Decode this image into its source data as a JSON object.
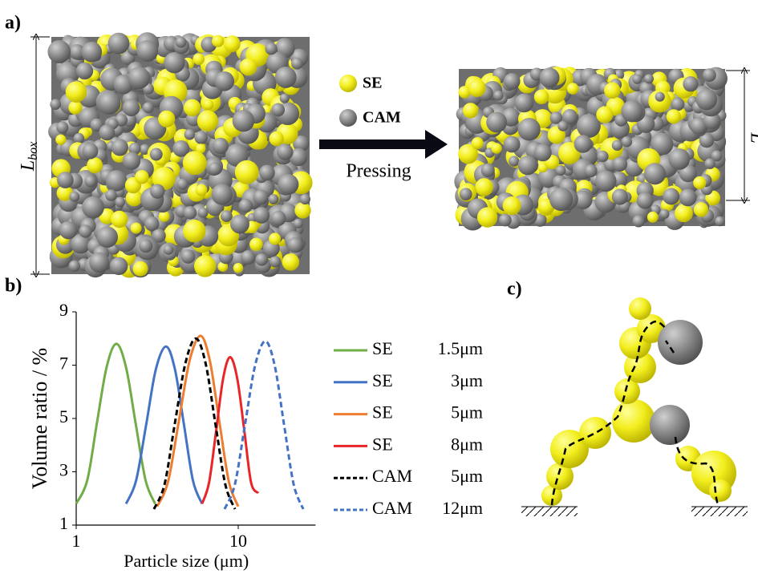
{
  "panels": {
    "a": {
      "label": "a)",
      "legend": [
        {
          "name": "SE",
          "color": "#f2ee1d"
        },
        {
          "name": "CAM",
          "color": "#8e8e8e"
        }
      ],
      "arrow_label": "Pressing",
      "height_label": {
        "text": "L",
        "subscript": "box"
      },
      "pressed_height_label": "L"
    },
    "b": {
      "label": "b)"
    },
    "c": {
      "label": "c)"
    }
  },
  "chart_data": {
    "type": "line",
    "x_label": "Particle size (μm)",
    "y_label": "Volume ratio / %",
    "xscale": "log",
    "xlim": [
      1,
      30
    ],
    "xticks": [
      1,
      10
    ],
    "ylim": [
      1,
      9
    ],
    "yticks": [
      1,
      3,
      5,
      7,
      9
    ],
    "grid": false,
    "legend": "right",
    "series": [
      {
        "name": "SE",
        "size": "1.5μm",
        "color": "#70ad47",
        "dashed": false,
        "x": [
          1.0,
          1.17,
          1.34,
          1.54,
          1.77,
          2.03,
          2.33,
          2.68,
          3.07
        ],
        "values": [
          1.8,
          2.68,
          4.8,
          6.92,
          7.8,
          6.92,
          4.8,
          2.68,
          1.8
        ]
      },
      {
        "name": "SE",
        "size": "3μm",
        "color": "#4472c4",
        "dashed": false,
        "x": [
          2.03,
          2.34,
          2.7,
          3.1,
          3.58,
          4.07,
          4.63,
          5.26,
          5.98
        ],
        "values": [
          1.8,
          2.66,
          4.75,
          6.84,
          7.7,
          6.84,
          4.75,
          2.66,
          1.8
        ]
      },
      {
        "name": "SE",
        "size": "5μm",
        "color": "#ed7d31",
        "dashed": false,
        "x": [
          3.16,
          3.69,
          4.3,
          5.01,
          5.85,
          6.68,
          7.64,
          8.75,
          10.0
        ],
        "values": [
          1.7,
          2.63,
          4.9,
          7.17,
          8.1,
          7.17,
          4.9,
          2.63,
          1.7
        ]
      },
      {
        "name": "SE",
        "size": "8μm",
        "color": "#e8262a",
        "dashed": false,
        "x": [
          5.98,
          6.61,
          7.31,
          8.07,
          8.91,
          9.86,
          10.9,
          12.0,
          13.3
        ],
        "values": [
          1.8,
          2.6,
          4.55,
          6.5,
          7.3,
          6.5,
          4.55,
          2.6,
          2.2
        ]
      },
      {
        "name": "CAM",
        "size": "5μm",
        "color": "#000000",
        "dashed": true,
        "x": [
          3.02,
          3.51,
          4.06,
          4.72,
          5.47,
          6.29,
          7.23,
          8.32,
          9.55
        ],
        "values": [
          1.6,
          2.53,
          4.8,
          7.07,
          8.0,
          7.07,
          4.8,
          2.53,
          1.6
        ]
      },
      {
        "name": "CAM",
        "size": "12μm",
        "color": "#4472c4",
        "dashed": true,
        "x": [
          8.24,
          9.53,
          11.0,
          12.7,
          14.7,
          16.8,
          19.2,
          22.0,
          25.2
        ],
        "values": [
          1.6,
          2.52,
          4.75,
          6.98,
          7.9,
          6.98,
          4.75,
          2.52,
          1.6
        ]
      }
    ]
  }
}
